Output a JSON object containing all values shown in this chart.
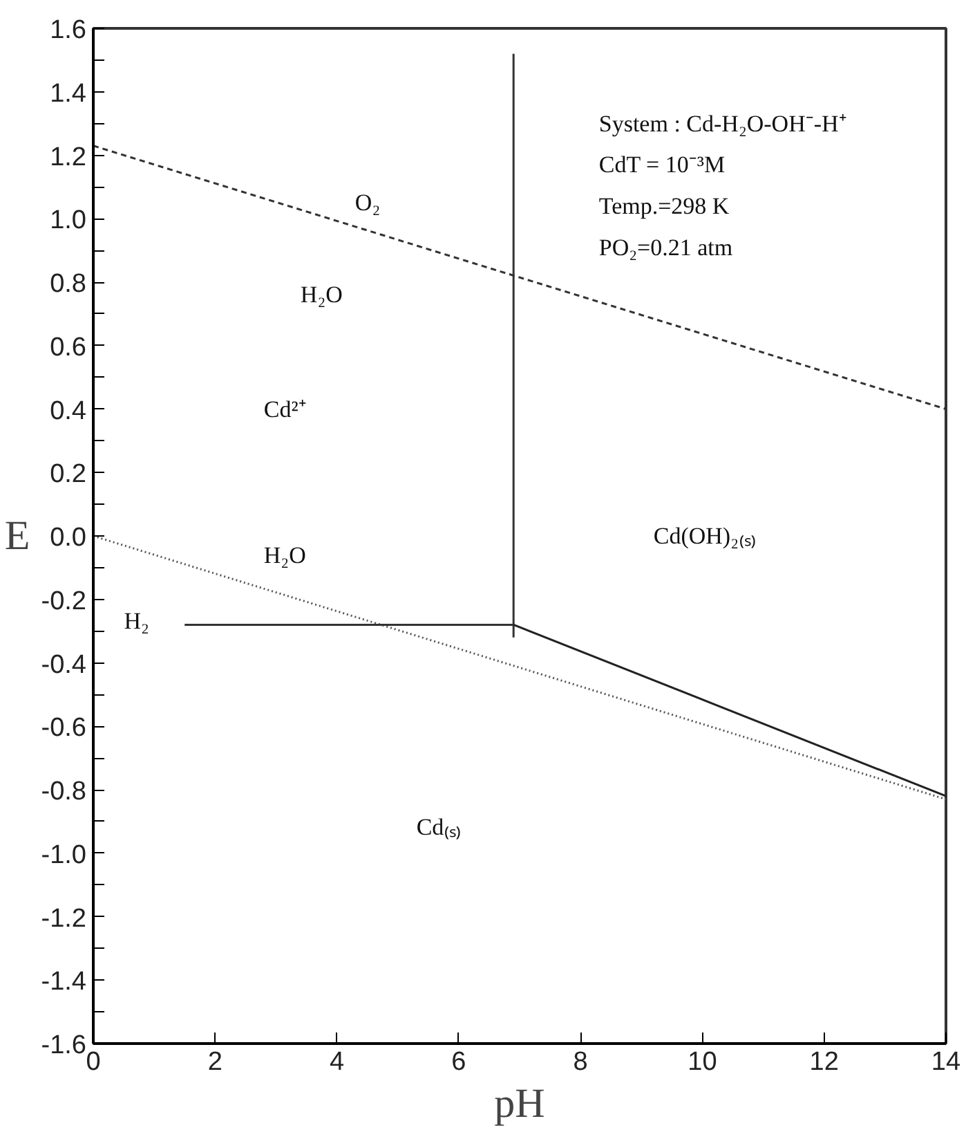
{
  "chart_data": {
    "type": "line",
    "xlabel": "pH",
    "ylabel": "E",
    "xlim": [
      0,
      14
    ],
    "ylim": [
      -1.6,
      1.6
    ],
    "xticks": [
      0,
      2,
      4,
      6,
      8,
      10,
      12,
      14
    ],
    "yticks": [
      {
        "value": -1.6,
        "label": "-1.6"
      },
      {
        "value": -1.5,
        "label": null
      },
      {
        "value": -1.4,
        "label": "-1.4"
      },
      {
        "value": -1.3,
        "label": null
      },
      {
        "value": -1.2,
        "label": "-1.2"
      },
      {
        "value": -1.1,
        "label": null
      },
      {
        "value": -1.0,
        "label": "-1.0"
      },
      {
        "value": -0.9,
        "label": null
      },
      {
        "value": -0.8,
        "label": "-0.8"
      },
      {
        "value": -0.7,
        "label": null
      },
      {
        "value": -0.6,
        "label": "-0.6"
      },
      {
        "value": -0.5,
        "label": null
      },
      {
        "value": -0.4,
        "label": "-0.4"
      },
      {
        "value": -0.3,
        "label": null
      },
      {
        "value": -0.2,
        "label": "-0.2"
      },
      {
        "value": -0.1,
        "label": null
      },
      {
        "value": 0,
        "label": "0.0"
      },
      {
        "value": 0.1,
        "label": null
      },
      {
        "value": 0.2,
        "label": "0.2"
      },
      {
        "value": 0.3,
        "label": null
      },
      {
        "value": 0.4,
        "label": "0.4"
      },
      {
        "value": 0.5,
        "label": null
      },
      {
        "value": 0.6,
        "label": "0.6"
      },
      {
        "value": 0.7,
        "label": null
      },
      {
        "value": 0.8,
        "label": "0.8"
      },
      {
        "value": 0.9,
        "label": null
      },
      {
        "value": 1.0,
        "label": "1.0"
      },
      {
        "value": 1.1,
        "label": null
      },
      {
        "value": 1.2,
        "label": "1.2"
      },
      {
        "value": 1.3,
        "label": null
      },
      {
        "value": 1.4,
        "label": "1.4"
      },
      {
        "value": 1.5,
        "label": null
      },
      {
        "value": 1.6,
        "label": "1.6"
      }
    ],
    "grid": false,
    "marker": "none",
    "series": [
      {
        "color": "#333333",
        "line_style": "dashed",
        "x": [
          0,
          14
        ],
        "values": [
          1.23,
          0.4
        ]
      },
      {
        "color": "#555555",
        "line_style": "dotted",
        "x": [
          0,
          14
        ],
        "values": [
          0,
          -0.83
        ]
      },
      {
        "color": "#333333",
        "line_style": "solid",
        "x": [
          1.5,
          6.9
        ],
        "values": [
          -0.28,
          -0.28
        ]
      },
      {
        "color": "#333333",
        "line_style": "solid",
        "x": [
          6.9,
          6.9
        ],
        "values": [
          1.52,
          -0.32
        ]
      },
      {
        "color": "#222222",
        "line_style": "solid",
        "x": [
          6.9,
          14
        ],
        "values": [
          -0.28,
          -0.82
        ]
      }
    ],
    "annotations": [
      "O₂",
      "H₂O",
      "Cd²⁺",
      "H₂O",
      "H₂",
      "Cd(OH)₂₍ₛ₎",
      "Cd₍ₛ₎",
      "System : Cd-H₂O-OH⁻-H⁺",
      "CdT = 10⁻³M",
      "Temp.=298 K",
      "PO₂=0.21 atm"
    ]
  }
}
